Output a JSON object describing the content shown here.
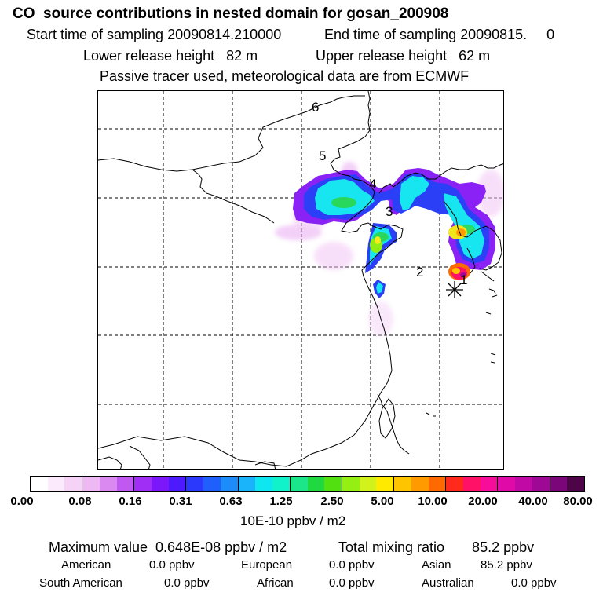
{
  "header": {
    "title": "CO  source contributions in nested domain for gosan_200908",
    "start_label": "Start time of sampling 20090814.210000",
    "end_label": "End time of sampling 20090815.     0",
    "lower_label": "Lower release height   82 m",
    "upper_label": "Upper release height   62 m",
    "note": "Passive tracer used, meteorological data are from ECMWF"
  },
  "map": {
    "site_labels": [
      "1",
      "2",
      "3",
      "4",
      "5",
      "6"
    ],
    "receptor_icon": "asterisk-icon"
  },
  "colorbar": {
    "ticks": [
      "0.00",
      "0.08",
      "0.16",
      "0.31",
      "0.63",
      "1.25",
      "2.50",
      "5.00",
      "10.00",
      "20.00",
      "40.00",
      "80.00"
    ],
    "unit": "10E-10 ppbv / m2",
    "colors": [
      "#ffffff",
      "#fbeafb",
      "#f5d2f6",
      "#eeb9f2",
      "#d989f0",
      "#c058f2",
      "#a02ef5",
      "#7d17fb",
      "#4d19fd",
      "#2a39fc",
      "#1f5ffb",
      "#1c8cfa",
      "#19b4fa",
      "#0fe7f0",
      "#11f2ca",
      "#1ce68a",
      "#20d840",
      "#52e011",
      "#94f013",
      "#d1f21b",
      "#ffea00",
      "#ffc400",
      "#ff9a00",
      "#ff6a00",
      "#ff2a1c",
      "#ff1168",
      "#f70d9a",
      "#e00aa8",
      "#c10aa5",
      "#9e0895",
      "#7a0679",
      "#4d0448"
    ]
  },
  "footer": {
    "max_label": "Maximum value  0.648E-08 ppbv / m2",
    "total_label": "Total mixing ratio       85.2 ppbv",
    "regions": [
      {
        "name": "American",
        "value": "0.0 ppbv"
      },
      {
        "name": "European",
        "value": "0.0 ppbv"
      },
      {
        "name": "Asian",
        "value": "85.2 ppbv"
      },
      {
        "name": "South American",
        "value": "0.0 ppbv"
      },
      {
        "name": "African",
        "value": "0.0 ppbv"
      },
      {
        "name": "Australian",
        "value": "0.0 ppbv"
      }
    ]
  }
}
